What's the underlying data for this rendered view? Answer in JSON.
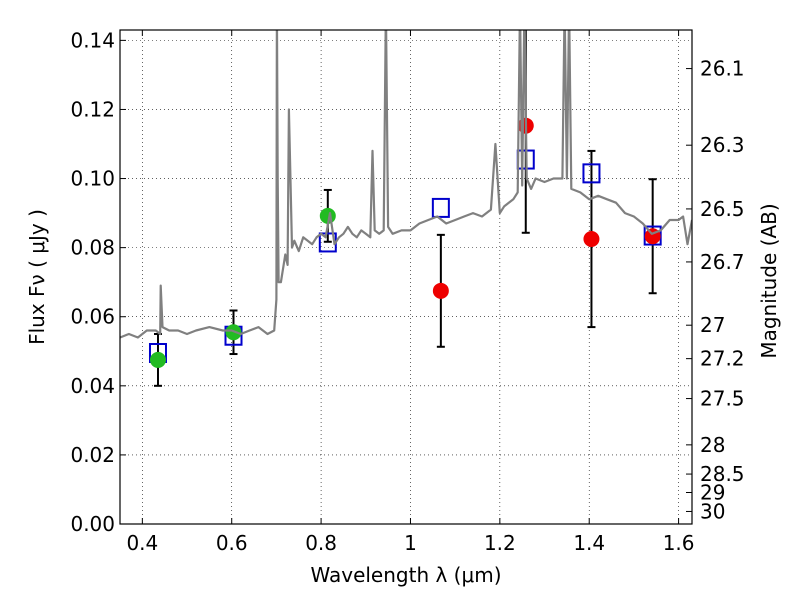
{
  "chart_data": {
    "type": "scatter",
    "xlabel": "Wavelength  λ (μm)",
    "ylabel": "Flux  Fν  ( μJy )",
    "y2label": "Magnitude (AB)",
    "xlim": [
      0.35,
      1.63
    ],
    "ylim": [
      0.0,
      0.143
    ],
    "grid": true,
    "x_ticks": [
      0.4,
      0.6,
      0.8,
      1.0,
      1.2,
      1.4,
      1.6
    ],
    "x_tick_labels": [
      "0.4",
      "0.6",
      "0.8",
      "1",
      "1.2",
      "1.4",
      "1.6"
    ],
    "y_ticks": [
      0.0,
      0.02,
      0.04,
      0.06,
      0.08,
      0.1,
      0.12,
      0.14
    ],
    "y_tick_labels": [
      "0.00",
      "0.02",
      "0.04",
      "0.06",
      "0.08",
      "0.10",
      "0.12",
      "0.14"
    ],
    "mag_ticks": [
      26.1,
      26.3,
      26.5,
      26.7,
      27,
      27.2,
      27.5,
      28,
      28.5,
      29,
      30
    ],
    "mag_tick_labels": [
      "26.1",
      "26.3",
      "26.5",
      "26.7",
      "27",
      "27.2",
      "27.5",
      "28",
      "28.5",
      "29",
      "30"
    ],
    "series": [
      {
        "marker": "line",
        "color": "#808080",
        "x": [
          0.35,
          0.37,
          0.39,
          0.41,
          0.43,
          0.44,
          0.441,
          0.445,
          0.46,
          0.48,
          0.5,
          0.52,
          0.55,
          0.58,
          0.6,
          0.62,
          0.64,
          0.66,
          0.68,
          0.695,
          0.7,
          0.701,
          0.703,
          0.705,
          0.71,
          0.72,
          0.725,
          0.728,
          0.735,
          0.74,
          0.75,
          0.76,
          0.77,
          0.78,
          0.79,
          0.8,
          0.81,
          0.82,
          0.83,
          0.84,
          0.85,
          0.86,
          0.87,
          0.88,
          0.89,
          0.9,
          0.91,
          0.915,
          0.92,
          0.93,
          0.94,
          0.945,
          0.95,
          0.955,
          0.96,
          0.98,
          1.0,
          1.02,
          1.04,
          1.06,
          1.08,
          1.1,
          1.12,
          1.14,
          1.16,
          1.18,
          1.19,
          1.2,
          1.21,
          1.22,
          1.23,
          1.24,
          1.245,
          1.25,
          1.255,
          1.26,
          1.27,
          1.28,
          1.3,
          1.32,
          1.34,
          1.345,
          1.35,
          1.355,
          1.36,
          1.38,
          1.4,
          1.42,
          1.44,
          1.46,
          1.48,
          1.5,
          1.52,
          1.54,
          1.56,
          1.58,
          1.6,
          1.61,
          1.62,
          1.63
        ],
        "y": [
          0.054,
          0.055,
          0.054,
          0.056,
          0.056,
          0.055,
          0.069,
          0.057,
          0.056,
          0.056,
          0.055,
          0.056,
          0.057,
          0.056,
          0.056,
          0.055,
          0.056,
          0.057,
          0.055,
          0.056,
          0.065,
          0.15,
          0.1,
          0.07,
          0.07,
          0.078,
          0.075,
          0.12,
          0.08,
          0.082,
          0.079,
          0.083,
          0.082,
          0.081,
          0.083,
          0.084,
          0.083,
          0.09,
          0.081,
          0.083,
          0.084,
          0.086,
          0.084,
          0.083,
          0.085,
          0.084,
          0.083,
          0.108,
          0.085,
          0.084,
          0.085,
          0.15,
          0.086,
          0.085,
          0.084,
          0.085,
          0.085,
          0.087,
          0.088,
          0.089,
          0.087,
          0.088,
          0.089,
          0.09,
          0.089,
          0.091,
          0.11,
          0.09,
          0.092,
          0.093,
          0.094,
          0.096,
          0.15,
          0.098,
          0.15,
          0.1,
          0.097,
          0.1,
          0.099,
          0.1,
          0.1,
          0.15,
          0.1,
          0.15,
          0.097,
          0.096,
          0.094,
          0.095,
          0.094,
          0.093,
          0.09,
          0.089,
          0.087,
          0.084,
          0.085,
          0.088,
          0.088,
          0.089,
          0.081,
          0.088
        ]
      },
      {
        "marker": "open-square",
        "color": "#0000cc",
        "x": [
          0.435,
          0.604,
          0.815,
          1.068,
          1.258,
          1.405,
          1.542
        ],
        "y": [
          0.0495,
          0.0545,
          0.0815,
          0.0915,
          0.1055,
          0.1015,
          0.0835
        ]
      },
      {
        "marker": "filled-circle",
        "color": "#22bb22",
        "x": [
          0.435,
          0.604,
          0.815
        ],
        "y": [
          0.0475,
          0.0555,
          0.0892
        ],
        "yerr": [
          0.0075,
          0.0063,
          0.0075
        ]
      },
      {
        "marker": "filled-circle",
        "color": "#ee0000",
        "x": [
          1.068,
          1.258,
          1.405,
          1.542
        ],
        "y": [
          0.0675,
          0.1153,
          0.0825,
          0.0833
        ],
        "yerr": [
          0.0162,
          0.031,
          0.0255,
          0.0165
        ]
      }
    ]
  }
}
